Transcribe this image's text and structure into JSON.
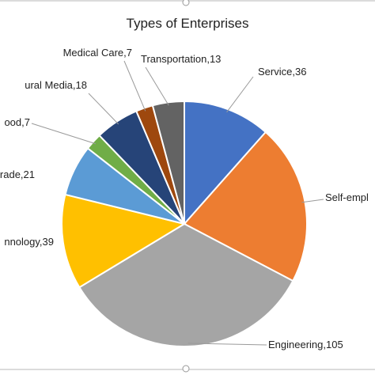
{
  "chart_data": {
    "type": "pie",
    "title": "Types of Enterprises",
    "slices": [
      {
        "label": "Service,36",
        "value": 36,
        "color": "#4472C4"
      },
      {
        "label": "Self-empl",
        "value": 66,
        "color": "#ED7D31"
      },
      {
        "label": "Engineering,105",
        "value": 105,
        "color": "#A5A5A5"
      },
      {
        "label": "nnology,39",
        "value": 39,
        "color": "#FFC000"
      },
      {
        "label": "rade,21",
        "value": 21,
        "color": "#5B9BD5"
      },
      {
        "label": "ood,7",
        "value": 7,
        "color": "#70AD47"
      },
      {
        "label": "ural Media,18",
        "value": 18,
        "color": "#264478"
      },
      {
        "label": "Medical Care,7",
        "value": 7,
        "color": "#9E480E"
      },
      {
        "label": "Transportation,13",
        "value": 13,
        "color": "#636363"
      }
    ],
    "legend": "none",
    "grid": false
  }
}
